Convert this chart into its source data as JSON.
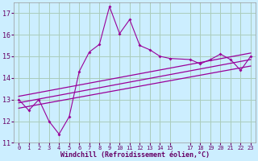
{
  "xlabel": "Windchill (Refroidissement éolien,°C)",
  "background_color": "#cceeff",
  "grid_color": "#aaccbb",
  "line_color": "#990099",
  "xlim": [
    -0.5,
    23.5
  ],
  "ylim": [
    11,
    17.5
  ],
  "yticks": [
    11,
    12,
    13,
    14,
    15,
    16,
    17
  ],
  "xtick_positions": [
    0,
    1,
    2,
    3,
    4,
    5,
    6,
    7,
    8,
    9,
    10,
    11,
    12,
    13,
    14,
    15,
    17,
    18,
    19,
    20,
    21,
    22,
    23
  ],
  "xtick_labels": [
    "0",
    "1",
    "2",
    "3",
    "4",
    "5",
    "6",
    "7",
    "8",
    "9",
    "10",
    "11",
    "12",
    "13",
    "14",
    "15",
    "17",
    "18",
    "19",
    "20",
    "21",
    "22",
    "23"
  ],
  "series1_x": [
    0,
    1,
    2,
    3,
    4,
    5,
    6,
    7,
    8,
    9,
    10,
    11,
    12,
    13,
    14,
    15,
    17,
    18,
    19,
    20,
    21,
    22,
    23
  ],
  "series1_y": [
    13.0,
    12.5,
    13.0,
    12.0,
    11.4,
    12.2,
    14.3,
    15.2,
    15.55,
    17.3,
    16.05,
    16.7,
    15.5,
    15.3,
    15.0,
    14.9,
    14.85,
    14.65,
    14.85,
    15.1,
    14.85,
    14.35,
    15.0
  ],
  "regression_lines": [
    {
      "x": [
        0,
        23
      ],
      "y": [
        12.6,
        14.55
      ]
    },
    {
      "x": [
        0,
        23
      ],
      "y": [
        12.85,
        14.85
      ]
    },
    {
      "x": [
        0,
        23
      ],
      "y": [
        13.15,
        15.15
      ]
    }
  ]
}
